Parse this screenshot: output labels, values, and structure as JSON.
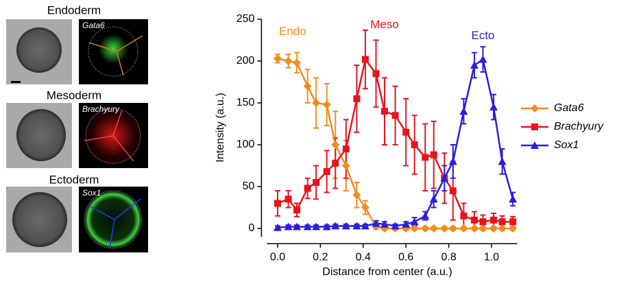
{
  "panels": [
    {
      "title": "Endoderm",
      "marker": "Gata6"
    },
    {
      "title": "Mesoderm",
      "marker": "Brachyury"
    },
    {
      "title": "Ectoderm",
      "marker": "Sox1"
    }
  ],
  "chart_data": {
    "type": "line",
    "x_label": "Distance from center (a.u.)",
    "y_label": "Intensity (a.u.)",
    "x": [
      0,
      0.05,
      0.09,
      0.14,
      0.18,
      0.23,
      0.27,
      0.32,
      0.37,
      0.41,
      0.46,
      0.5,
      0.55,
      0.6,
      0.64,
      0.69,
      0.73,
      0.78,
      0.82,
      0.87,
      0.92,
      0.96,
      1.01,
      1.05,
      1.1
    ],
    "series": [
      {
        "name": "Gata6",
        "color": "#f28c1e",
        "marker": "diamond",
        "values": [
          203,
          200,
          198,
          170,
          150,
          148,
          100,
          75,
          40,
          25,
          2,
          0,
          0,
          0,
          0,
          0,
          0,
          0,
          0,
          0,
          0,
          0,
          0,
          0,
          0
        ],
        "errors": [
          5,
          8,
          12,
          20,
          30,
          25,
          40,
          30,
          15,
          8,
          3,
          2,
          2,
          2,
          2,
          2,
          2,
          2,
          2,
          2,
          2,
          2,
          2,
          2,
          2
        ]
      },
      {
        "name": "Brachyury",
        "color": "#e8141b",
        "marker": "square",
        "values": [
          30,
          35,
          22,
          48,
          55,
          68,
          78,
          95,
          155,
          202,
          185,
          140,
          135,
          115,
          100,
          85,
          88,
          60,
          45,
          15,
          10,
          8,
          10,
          8,
          8
        ],
        "errors": [
          15,
          10,
          8,
          12,
          20,
          25,
          30,
          35,
          40,
          35,
          40,
          40,
          35,
          40,
          35,
          40,
          40,
          30,
          35,
          15,
          10,
          8,
          8,
          7,
          6
        ]
      },
      {
        "name": "Sox1",
        "color": "#2b1de0",
        "marker": "triangle",
        "values": [
          1,
          2,
          2,
          2,
          2,
          2,
          3,
          3,
          3,
          3,
          6,
          5,
          3,
          5,
          8,
          15,
          35,
          60,
          80,
          140,
          195,
          202,
          145,
          80,
          35
        ],
        "errors": [
          2,
          2,
          2,
          2,
          2,
          2,
          2,
          2,
          2,
          2,
          3,
          3,
          2,
          3,
          5,
          5,
          10,
          15,
          20,
          15,
          15,
          15,
          15,
          15,
          8
        ]
      }
    ],
    "annotations": [
      {
        "text": "Endo",
        "color": "#f28c1e",
        "x": 0.07,
        "y": 235
      },
      {
        "text": "Meso",
        "color": "#e8141b",
        "x": 0.5,
        "y": 243
      },
      {
        "text": "Ecto",
        "color": "#2b1de0",
        "x": 0.96,
        "y": 230
      }
    ],
    "xlim": [
      -0.05,
      1.12
    ],
    "ylim": [
      -10,
      250
    ],
    "xticks": [
      {
        "value": 0,
        "label": "0.0"
      },
      0.2,
      0.4,
      0.6,
      0.8,
      {
        "value": 1,
        "label": "1.0"
      }
    ],
    "yticks": [
      0,
      50,
      100,
      150,
      200,
      250
    ],
    "legend": "right"
  }
}
